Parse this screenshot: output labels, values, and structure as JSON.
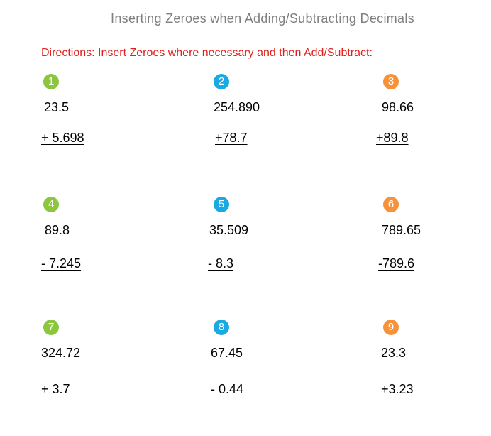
{
  "title": "Inserting Zeroes when Adding/Subtracting Decimals",
  "directions": "Directions: Insert Zeroes where necessary and then Add/Subtract:",
  "colors": {
    "green": "#8cc63f",
    "blue": "#1ba9e1",
    "orange": "#f7923a",
    "directions": "#e0201b",
    "title": "#7f7f7f"
  },
  "problems": [
    {
      "number": "1",
      "first": "23.5",
      "second": "+ 5.698",
      "color": "green"
    },
    {
      "number": "2",
      "first": "254.890",
      "second": "+78.7",
      "color": "blue"
    },
    {
      "number": "3",
      "first": "98.66",
      "second": "+89.8",
      "color": "orange"
    },
    {
      "number": "4",
      "first": "89.8",
      "second": "- 7.245",
      "color": "green"
    },
    {
      "number": "5",
      "first": "35.509",
      "second": "- 8.3",
      "color": "blue"
    },
    {
      "number": "6",
      "first": "789.65",
      "second": "-789.6",
      "color": "orange"
    },
    {
      "number": "7",
      "first": "324.72",
      "second": "+ 3.7",
      "color": "green"
    },
    {
      "number": "8",
      "first": "67.45",
      "second": "- 0.44",
      "color": "blue"
    },
    {
      "number": "9",
      "first": "23.3",
      "second": "+3.23",
      "color": "orange"
    }
  ]
}
